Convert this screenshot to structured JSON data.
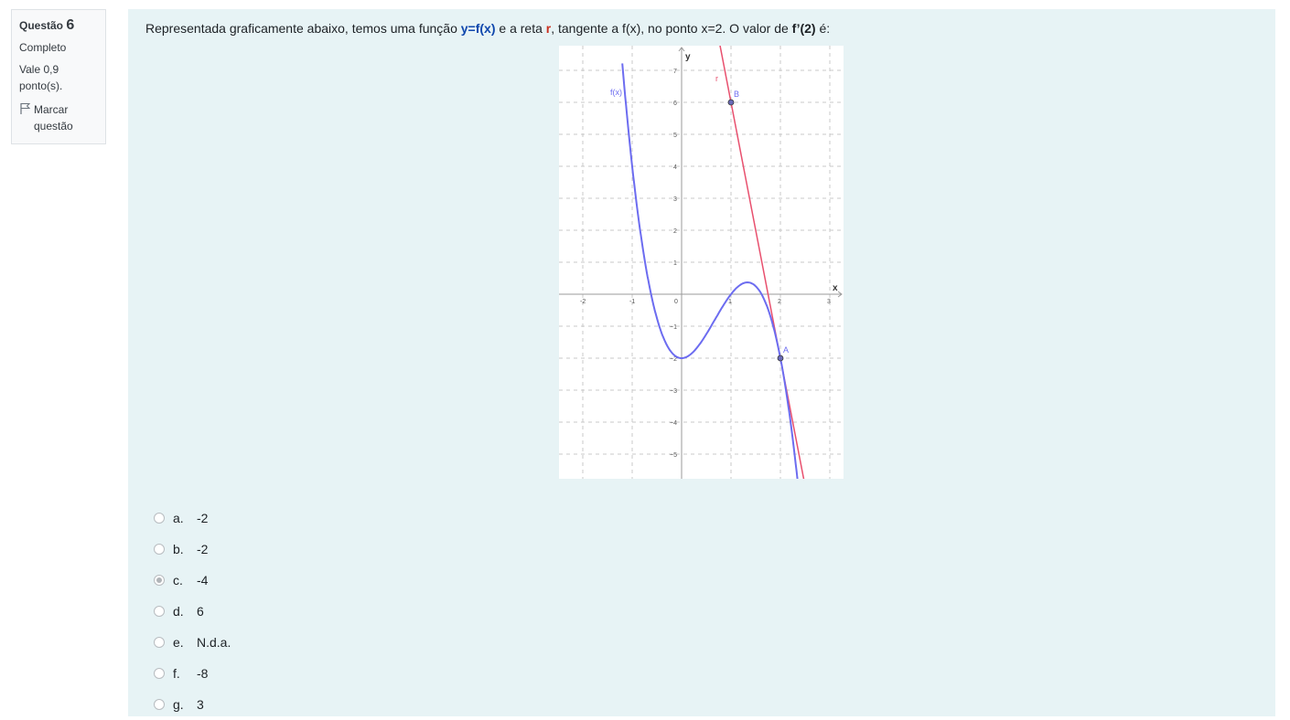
{
  "question_info": {
    "label": "Questão",
    "number": "6",
    "state": "Completo",
    "grade": "Vale 0,9 ponto(s).",
    "flag_label": "Marcar questão"
  },
  "question": {
    "text_1": "Representada graficamente abaixo, temos uma função ",
    "func": "y=f(x)",
    "text_2": " e a reta ",
    "line": "r",
    "text_3": ", tangente a f(x), no ponto x=2. O valor de ",
    "derivative": "f’(2)",
    "text_4": " é:"
  },
  "graph": {
    "x_axis_label": "x",
    "y_axis_label": "y",
    "fx_label": "f(x)",
    "r_label": "r",
    "point_a": "A",
    "point_b": "B",
    "x_ticks": [
      "-2",
      "-1",
      "0",
      "1",
      "2",
      "3"
    ],
    "y_ticks": [
      "7",
      "6",
      "5",
      "4",
      "3",
      "2",
      "1",
      "−1",
      "−2",
      "−3",
      "−4",
      "−5"
    ],
    "colors": {
      "curve": "#6c6cf0",
      "tangent": "#e8506e",
      "grid": "#c8c8c8"
    }
  },
  "answers": [
    {
      "letter": "a.",
      "text": "-2",
      "selected": false
    },
    {
      "letter": "b.",
      "text": "-2",
      "selected": false
    },
    {
      "letter": "c.",
      "text": "-4",
      "selected": true
    },
    {
      "letter": "d.",
      "text": "6",
      "selected": false
    },
    {
      "letter": "e.",
      "text": "N.d.a.",
      "selected": false
    },
    {
      "letter": "f.",
      "text": "-8",
      "selected": false
    },
    {
      "letter": "g.",
      "text": "3",
      "selected": false
    }
  ]
}
